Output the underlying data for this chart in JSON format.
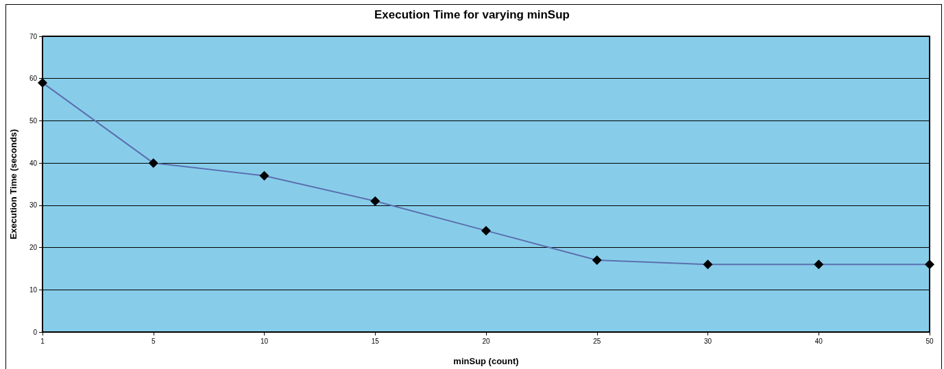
{
  "chart_data": {
    "type": "line",
    "title": "Execution Time for varying minSup",
    "xlabel": "minSup (count)",
    "ylabel": "Execution Time (seconds)",
    "categories": [
      "1",
      "5",
      "10",
      "15",
      "20",
      "25",
      "30",
      "40",
      "50"
    ],
    "series": [
      {
        "color": "#5b6fae",
        "values": [
          59,
          40,
          37,
          31,
          24,
          17,
          16,
          16,
          16
        ]
      }
    ],
    "ylim": [
      0,
      70
    ],
    "yticks": [
      0,
      10,
      20,
      30,
      40,
      50,
      60,
      70
    ],
    "grid": "y",
    "marker": "diamond",
    "line_style": "solid"
  }
}
